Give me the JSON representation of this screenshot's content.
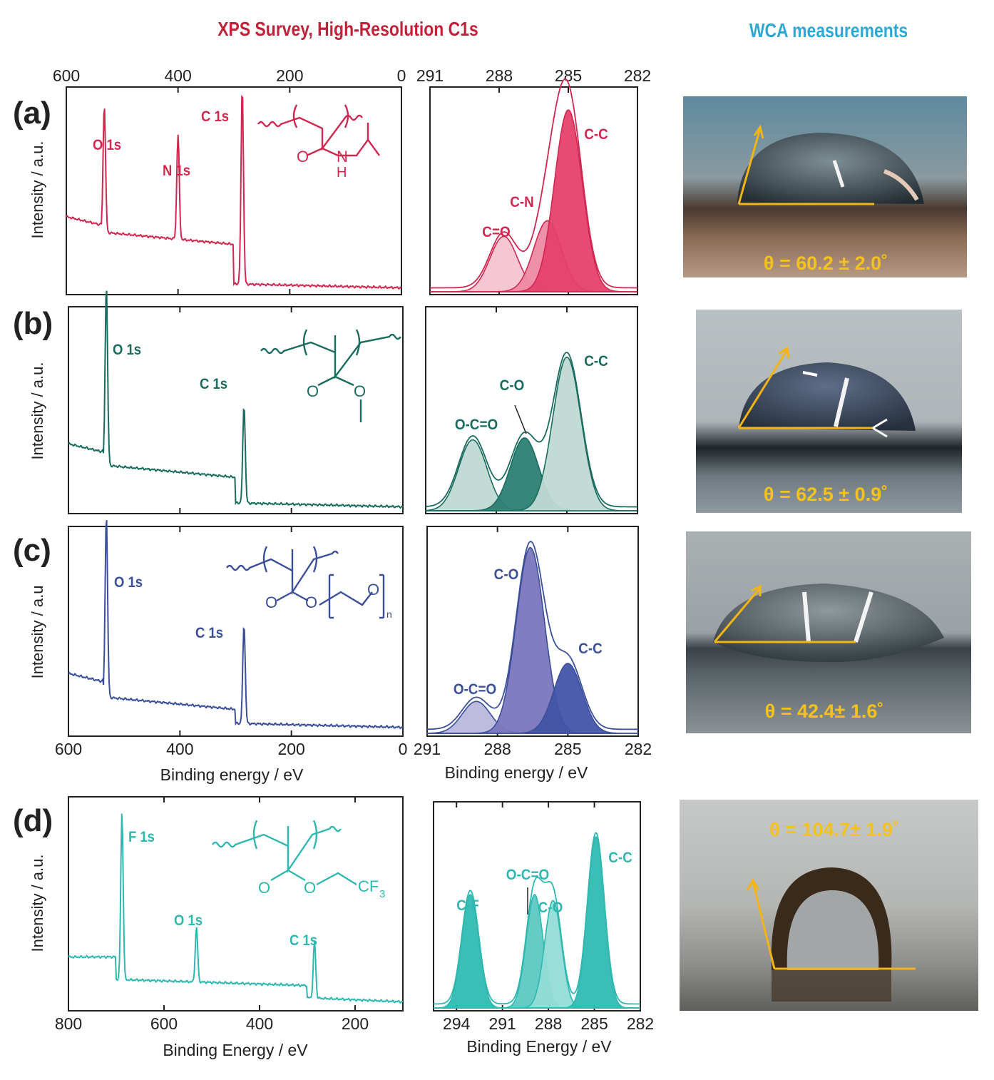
{
  "headers": {
    "xps": "XPS Survey, High-Resolution C1s",
    "wca": "WCA measurements"
  },
  "colors": {
    "header_xps": "#c0223a",
    "header_wca": "#2aa9d8",
    "angle_text": "#f4c21b",
    "angle_line": "#f2b416"
  },
  "shared_text": {
    "ylabel_a": "Intensity / a.u.",
    "ylabel_b": "Intensity / a.u.",
    "ylabel_c": "Intensity / a.u",
    "ylabel_d": "Intensity / a.u.",
    "xlabel_survey_c": "Binding energy / eV",
    "xlabel_c1s_c": "Binding energy / eV",
    "xlabel_survey_d": "Binding Energy / eV",
    "xlabel_c1s_d": "Binding Energy / eV"
  },
  "structures": {
    "a": {
      "o": "O",
      "n": "N",
      "h": "H"
    },
    "b": {
      "o1": "O",
      "o2": "O"
    },
    "c": {
      "o1": "O",
      "o2": "O",
      "o3": "O",
      "sub": "n"
    },
    "d": {
      "o1": "O",
      "o2": "O",
      "cf": "CF",
      "sub": "3"
    }
  },
  "chart_data": [
    {
      "panel": "a",
      "type": "line",
      "title": "XPS survey",
      "color": "#d0284f",
      "xlim": [
        600,
        0
      ],
      "xticks": [
        600,
        400,
        200,
        0
      ],
      "tick_position": "top",
      "peaks": [
        {
          "label": "O 1s",
          "x": 532
        },
        {
          "label": "N 1s",
          "x": 400
        },
        {
          "label": "C 1s",
          "x": 285
        }
      ]
    },
    {
      "panel": "a",
      "type": "area",
      "title": "C1s high resolution",
      "color": "#d0284f",
      "xlim": [
        291,
        282
      ],
      "xticks": [
        291,
        288,
        285,
        282
      ],
      "tick_position": "top",
      "series": [
        {
          "name": "C=O",
          "center": 287.8,
          "height": 0.28,
          "fill": "#f4c3d2"
        },
        {
          "name": "C-N",
          "center": 285.9,
          "height": 0.36,
          "fill": "#ee8aa6"
        },
        {
          "name": "C-C",
          "center": 285.0,
          "height": 0.92,
          "fill": "#e5406e"
        }
      ]
    },
    {
      "panel": "b",
      "type": "line",
      "title": "XPS survey",
      "color": "#1a6b60",
      "xlim": [
        600,
        0
      ],
      "xticks": [
        600,
        400,
        200,
        0
      ],
      "peaks": [
        {
          "label": "O 1s",
          "x": 532
        },
        {
          "label": "C 1s",
          "x": 285
        }
      ]
    },
    {
      "panel": "b",
      "type": "area",
      "title": "C1s high resolution",
      "color": "#1a6b60",
      "xlim": [
        291,
        282
      ],
      "xticks": [
        291,
        288,
        285,
        282
      ],
      "series": [
        {
          "name": "O-C=O",
          "center": 289.0,
          "height": 0.36,
          "fill": "#c0d9d3"
        },
        {
          "name": "C-O",
          "center": 286.8,
          "height": 0.37,
          "fill": "#2b7f72"
        },
        {
          "name": "C-C",
          "center": 285.0,
          "height": 0.78,
          "fill": "#c0d9d3"
        }
      ]
    },
    {
      "panel": "c",
      "type": "line",
      "title": "XPS survey",
      "color": "#3b4f9a",
      "xlim": [
        600,
        0
      ],
      "xticks": [
        600,
        400,
        200,
        0
      ],
      "xlabel": "Binding energy / eV",
      "peaks": [
        {
          "label": "O 1s",
          "x": 532
        },
        {
          "label": "C 1s",
          "x": 285
        }
      ]
    },
    {
      "panel": "c",
      "type": "area",
      "title": "C1s high resolution",
      "color": "#3b4f9a",
      "xlim": [
        291,
        282
      ],
      "xticks": [
        291,
        288,
        285,
        282
      ],
      "xlabel": "Binding energy / eV",
      "series": [
        {
          "name": "O-C=O",
          "center": 288.9,
          "height": 0.16,
          "fill": "#b9b8dc"
        },
        {
          "name": "C-O",
          "center": 286.6,
          "height": 0.93,
          "fill": "#7a76bd"
        },
        {
          "name": "C-C",
          "center": 285.0,
          "height": 0.35,
          "fill": "#4154a8"
        }
      ]
    },
    {
      "panel": "d",
      "type": "line",
      "title": "XPS survey",
      "color": "#2fb8b0",
      "xlim": [
        800,
        100
      ],
      "xticks": [
        800,
        600,
        400,
        200
      ],
      "xlabel": "Binding Energy / eV",
      "peaks": [
        {
          "label": "F 1s",
          "x": 688
        },
        {
          "label": "O 1s",
          "x": 532
        },
        {
          "label": "C 1s",
          "x": 285
        }
      ]
    },
    {
      "panel": "d",
      "type": "area",
      "title": "C1s high resolution",
      "color": "#2fb8b0",
      "xlim": [
        295.5,
        282
      ],
      "xticks": [
        294,
        291,
        288,
        285,
        282
      ],
      "xlabel": "Binding Energy / eV",
      "series": [
        {
          "name": "C-F",
          "center": 293.1,
          "height": 0.57,
          "fill": "#2fbab2"
        },
        {
          "name": "O-C=O",
          "center": 288.9,
          "height": 0.57,
          "fill": "#5cc9c2"
        },
        {
          "name": "C-O",
          "center": 287.7,
          "height": 0.54,
          "fill": "#93dcd6"
        },
        {
          "name": "C-C",
          "center": 284.9,
          "height": 0.86,
          "fill": "#2fbab2"
        }
      ]
    }
  ],
  "panels": [
    {
      "id": "a",
      "label": "(a)",
      "wca": "θ = 60.2 ± 2.0˚",
      "angle_deg": 60.2
    },
    {
      "id": "b",
      "label": "(b)",
      "wca": "θ = 62.5 ± 0.9˚",
      "angle_deg": 62.5
    },
    {
      "id": "c",
      "label": "(c)",
      "wca": "θ = 42.4± 1.6˚",
      "angle_deg": 42.4
    },
    {
      "id": "d",
      "label": "(d)",
      "wca": "θ = 104.7± 1.9˚",
      "angle_deg": 104.7
    }
  ]
}
